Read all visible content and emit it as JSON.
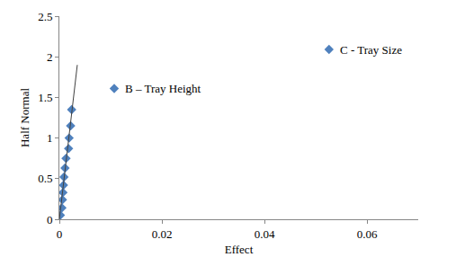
{
  "chart_data": {
    "type": "scatter",
    "x_label": "Effect",
    "y_label": "Half Normal",
    "xlim": [
      0,
      0.07
    ],
    "xticks": [
      0,
      0.02,
      0.04,
      0.06
    ],
    "ylim": [
      0,
      2.5
    ],
    "yticks": [
      0,
      0.5,
      1,
      1.5,
      2,
      2.5
    ],
    "grid": false,
    "series": [
      {
        "type": "scatter",
        "marker": "diamond",
        "color": "#4f81bd",
        "x": [
          0.0002,
          0.0005,
          0.0006,
          0.0007,
          0.0008,
          0.0009,
          0.0011,
          0.0013,
          0.0018,
          0.0019,
          0.0022,
          0.0024,
          0.0107,
          0.0526
        ],
        "values": [
          0.05,
          0.14,
          0.24,
          0.33,
          0.42,
          0.52,
          0.63,
          0.75,
          0.87,
          1.0,
          1.15,
          1.35,
          1.61,
          2.09
        ]
      },
      {
        "type": "line",
        "line_style": "solid",
        "color": "#404040",
        "x": [
          0,
          0.0035
        ],
        "values": [
          0,
          1.9
        ]
      }
    ],
    "annotations": [
      {
        "text": "B – Tray Height",
        "x": 0.0107,
        "y": 1.61
      },
      {
        "text": "C - Tray Size",
        "x": 0.0526,
        "y": 2.09
      }
    ]
  }
}
